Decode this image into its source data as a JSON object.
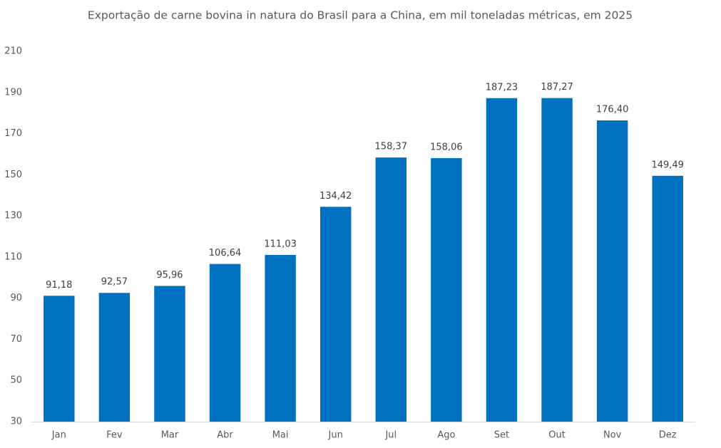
{
  "chart_data": {
    "type": "bar",
    "title": "Exportação de carne bovina in natura do Brasil para a China, em mil toneladas métricas, em 2025",
    "categories": [
      "Jan",
      "Fev",
      "Mar",
      "Abr",
      "Mai",
      "Jun",
      "Jul",
      "Ago",
      "Set",
      "Out",
      "Nov",
      "Dez"
    ],
    "values": [
      91.18,
      92.57,
      95.96,
      106.64,
      111.03,
      134.42,
      158.37,
      158.06,
      187.23,
      187.27,
      176.4,
      149.49
    ],
    "value_labels": [
      "91,18",
      "92,57",
      "95,96",
      "106,64",
      "111,03",
      "134,42",
      "158,37",
      "158,06",
      "187,23",
      "187,27",
      "176,40",
      "149,49"
    ],
    "color": "#0070c0",
    "ylim": [
      30,
      210
    ],
    "yticks": [
      30,
      50,
      70,
      90,
      110,
      130,
      150,
      170,
      190,
      210
    ],
    "grid": false
  }
}
